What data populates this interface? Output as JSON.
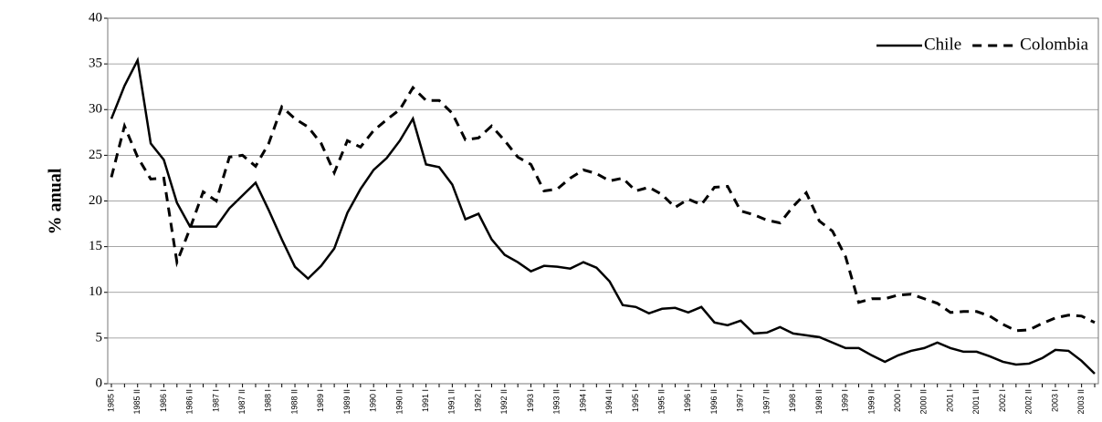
{
  "chart_data": {
    "type": "line",
    "ylabel": "% anual",
    "categories": [
      "1985 I",
      null,
      "1985 II",
      null,
      "1986 I",
      null,
      "1986 II",
      null,
      "1987 I",
      null,
      "1987 II",
      null,
      "1988 I",
      null,
      "1988 II",
      null,
      "1989 I",
      null,
      "1989 II",
      null,
      "1990 I",
      null,
      "1990 II",
      null,
      "1991 I",
      null,
      "1991 II",
      null,
      "1992 I",
      null,
      "1992 II",
      null,
      "1993 I",
      null,
      "1993 II",
      null,
      "1994 I",
      null,
      "1994 II",
      null,
      "1995 I",
      null,
      "1995 II",
      null,
      "1996 I",
      null,
      "1996 II",
      null,
      "1997 I",
      null,
      "1997 II",
      null,
      "1998 I",
      null,
      "1998 II",
      null,
      "1999 I",
      null,
      "1999 II",
      null,
      "2000 I",
      null,
      "2000 II",
      null,
      "2001 I",
      null,
      "2001 II",
      null,
      "2002 I",
      null,
      "2002 II",
      null,
      "2003 I",
      null,
      "2003 II",
      null
    ],
    "series": [
      {
        "name": "Chile",
        "color": "#000000",
        "dash": "solid",
        "values": [
          29,
          32.6,
          35.4,
          26.3,
          24.5,
          19.8,
          17.2,
          17.2,
          17.2,
          19.2,
          20.6,
          22,
          19,
          15.8,
          12.8,
          11.5,
          12.9,
          14.8,
          18.7,
          21.3,
          23.4,
          24.7,
          26.6,
          29,
          24,
          23.7,
          21.8,
          18,
          18.6,
          15.8,
          14.1,
          13.3,
          12.3,
          12.9,
          12.8,
          12.6,
          13.3,
          12.7,
          11.2,
          8.6,
          8.4,
          7.7,
          8.2,
          8.3,
          7.8,
          8.4,
          6.7,
          6.4,
          6.9,
          5.5,
          5.6,
          6.2,
          5.5,
          5.3,
          5.1,
          4.5,
          3.9,
          3.9,
          3.1,
          2.4,
          3.1,
          3.6,
          3.9,
          4.5,
          3.9,
          3.5,
          3.5,
          3.0,
          2.4,
          2.1,
          2.2,
          2.8,
          3.7,
          3.6,
          2.5,
          1.1
        ]
      },
      {
        "name": "Colombia",
        "color": "#000000",
        "dash": "dashed",
        "values": [
          22.6,
          28.2,
          24.8,
          22.4,
          22.5,
          13.3,
          17,
          21,
          20,
          24.8,
          25,
          23.8,
          26.3,
          30.3,
          29,
          28.1,
          26.3,
          23.1,
          26.6,
          25.9,
          27.7,
          28.9,
          30,
          32.4,
          31,
          31,
          29.6,
          26.7,
          26.9,
          28.2,
          26.6,
          24.8,
          24,
          21.1,
          21.3,
          22.5,
          23.4,
          23,
          22.2,
          22.5,
          21.1,
          21.5,
          20.7,
          19.3,
          20.2,
          19.6,
          21.5,
          21.6,
          18.9,
          18.5,
          17.9,
          17.6,
          19.4,
          20.9,
          17.8,
          16.7,
          13.9,
          8.9,
          9.3,
          9.3,
          9.7,
          9.8,
          9.3,
          8.8,
          7.8,
          7.9,
          7.9,
          7.4,
          6.5,
          5.8,
          5.9,
          6.6,
          7.2,
          7.5,
          7.4,
          6.7
        ]
      }
    ],
    "ylim": [
      0,
      40
    ],
    "yticks": [
      0,
      5,
      10,
      15,
      20,
      25,
      30,
      35,
      40
    ],
    "grid": true,
    "legend": "upper right"
  }
}
